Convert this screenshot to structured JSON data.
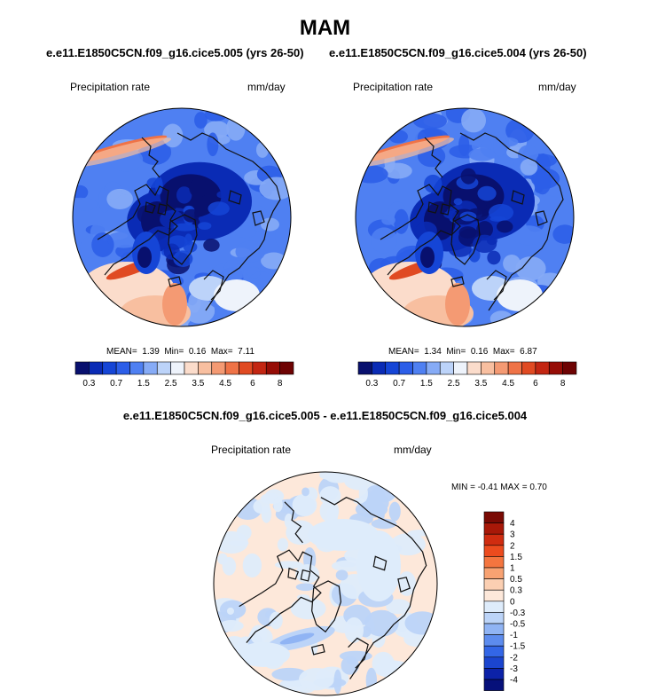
{
  "title": "MAM",
  "left_subtitle": "e.e11.E1850C5CN.f09_g16.cice5.005 (yrs 26-50)",
  "right_subtitle": "e.e11.E1850C5CN.f09_g16.cice5.004 (yrs 26-50)",
  "diff_title": "e.e11.E1850C5CN.f09_g16.cice5.005 - e.e11.E1850C5CN.f09_g16.cice5.004",
  "chart_data": [
    {
      "type": "heatmap",
      "projection": "north-polar-stereographic",
      "variable_label": "Precipitation rate",
      "units_label": "mm/day",
      "stats": {
        "mean_label": "MEAN=",
        "mean": "1.39",
        "min_label": "Min=",
        "min": "0.16",
        "max_label": "Max=",
        "max": "7.11"
      },
      "colorbar": {
        "orientation": "horizontal",
        "levels": [
          0.3,
          0.5,
          0.7,
          1,
          1.5,
          2,
          2.5,
          3,
          3.5,
          4,
          4.5,
          5,
          6,
          7,
          8
        ],
        "tick_labels": [
          "0.3",
          "0.7",
          "1.5",
          "2.5",
          "3.5",
          "4.5",
          "6",
          "8"
        ],
        "colors": [
          "#08106e",
          "#0a2bb5",
          "#1545d6",
          "#2c5ee8",
          "#4f80f2",
          "#86abf6",
          "#bcd3f9",
          "#eef3fb",
          "#fbdccb",
          "#f8bfa0",
          "#f49a73",
          "#ef7347",
          "#e04a22",
          "#c32612",
          "#960d06",
          "#6e0303"
        ]
      }
    },
    {
      "type": "heatmap",
      "projection": "north-polar-stereographic",
      "variable_label": "Precipitation rate",
      "units_label": "mm/day",
      "stats": {
        "mean_label": "MEAN=",
        "mean": "1.34",
        "min_label": "Min=",
        "min": "0.16",
        "max_label": "Max=",
        "max": "6.87"
      },
      "colorbar": {
        "orientation": "horizontal",
        "levels": [
          0.3,
          0.5,
          0.7,
          1,
          1.5,
          2,
          2.5,
          3,
          3.5,
          4,
          4.5,
          5,
          6,
          7,
          8
        ],
        "tick_labels": [
          "0.3",
          "0.7",
          "1.5",
          "2.5",
          "3.5",
          "4.5",
          "6",
          "8"
        ],
        "colors": [
          "#08106e",
          "#0a2bb5",
          "#1545d6",
          "#2c5ee8",
          "#4f80f2",
          "#86abf6",
          "#bcd3f9",
          "#eef3fb",
          "#fbdccb",
          "#f8bfa0",
          "#f49a73",
          "#ef7347",
          "#e04a22",
          "#c32612",
          "#960d06",
          "#6e0303"
        ]
      }
    },
    {
      "type": "heatmap",
      "projection": "north-polar-stereographic",
      "variable_label": "Precipitation rate",
      "units_label": "mm/day",
      "stats_text": "MIN = -0.41 MAX =  0.70",
      "colorbar": {
        "orientation": "vertical",
        "levels": [
          4,
          3,
          2,
          1.5,
          1,
          0.5,
          0.3,
          0,
          -0.3,
          -0.5,
          -1,
          -1.5,
          -2,
          -3,
          -4
        ],
        "tick_labels": [
          "4",
          "3",
          "2",
          "1.5",
          "1",
          "0.5",
          "0.3",
          "0",
          "-0.3",
          "-0.5",
          "-1",
          "-1.5",
          "-2",
          "-3",
          "-4"
        ],
        "colors": [
          "#7a0a04",
          "#a81808",
          "#d02c10",
          "#ec4b1e",
          "#f4753f",
          "#f8a272",
          "#fbcfb2",
          "#fde8da",
          "#deecfb",
          "#bcd4f8",
          "#90b4f4",
          "#5d8cee",
          "#3366e6",
          "#1b45cf",
          "#0c22a8",
          "#06107a"
        ]
      }
    }
  ]
}
